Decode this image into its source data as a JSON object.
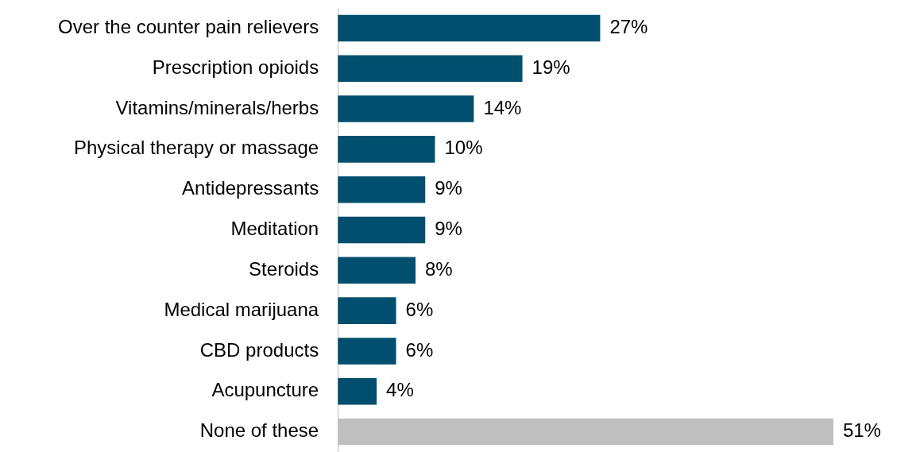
{
  "chart_data": {
    "type": "bar",
    "categories": [
      "Over the counter pain relievers",
      "Prescription opioids",
      "Vitamins/minerals/herbs",
      "Physical therapy or massage",
      "Antidepressants",
      "Meditation",
      "Steroids",
      "Medical marijuana",
      "CBD products",
      "Acupuncture",
      "None of these"
    ],
    "values": [
      27,
      19,
      14,
      10,
      9,
      9,
      8,
      6,
      6,
      4,
      51
    ],
    "value_labels": [
      "27%",
      "19%",
      "14%",
      "10%",
      "9%",
      "9%",
      "8%",
      "6%",
      "6%",
      "4%",
      "51%"
    ],
    "colors": [
      "#004f6e",
      "#004f6e",
      "#004f6e",
      "#004f6e",
      "#004f6e",
      "#004f6e",
      "#004f6e",
      "#004f6e",
      "#004f6e",
      "#004f6e",
      "#bfbfbf"
    ],
    "orientation": "horizontal"
  }
}
